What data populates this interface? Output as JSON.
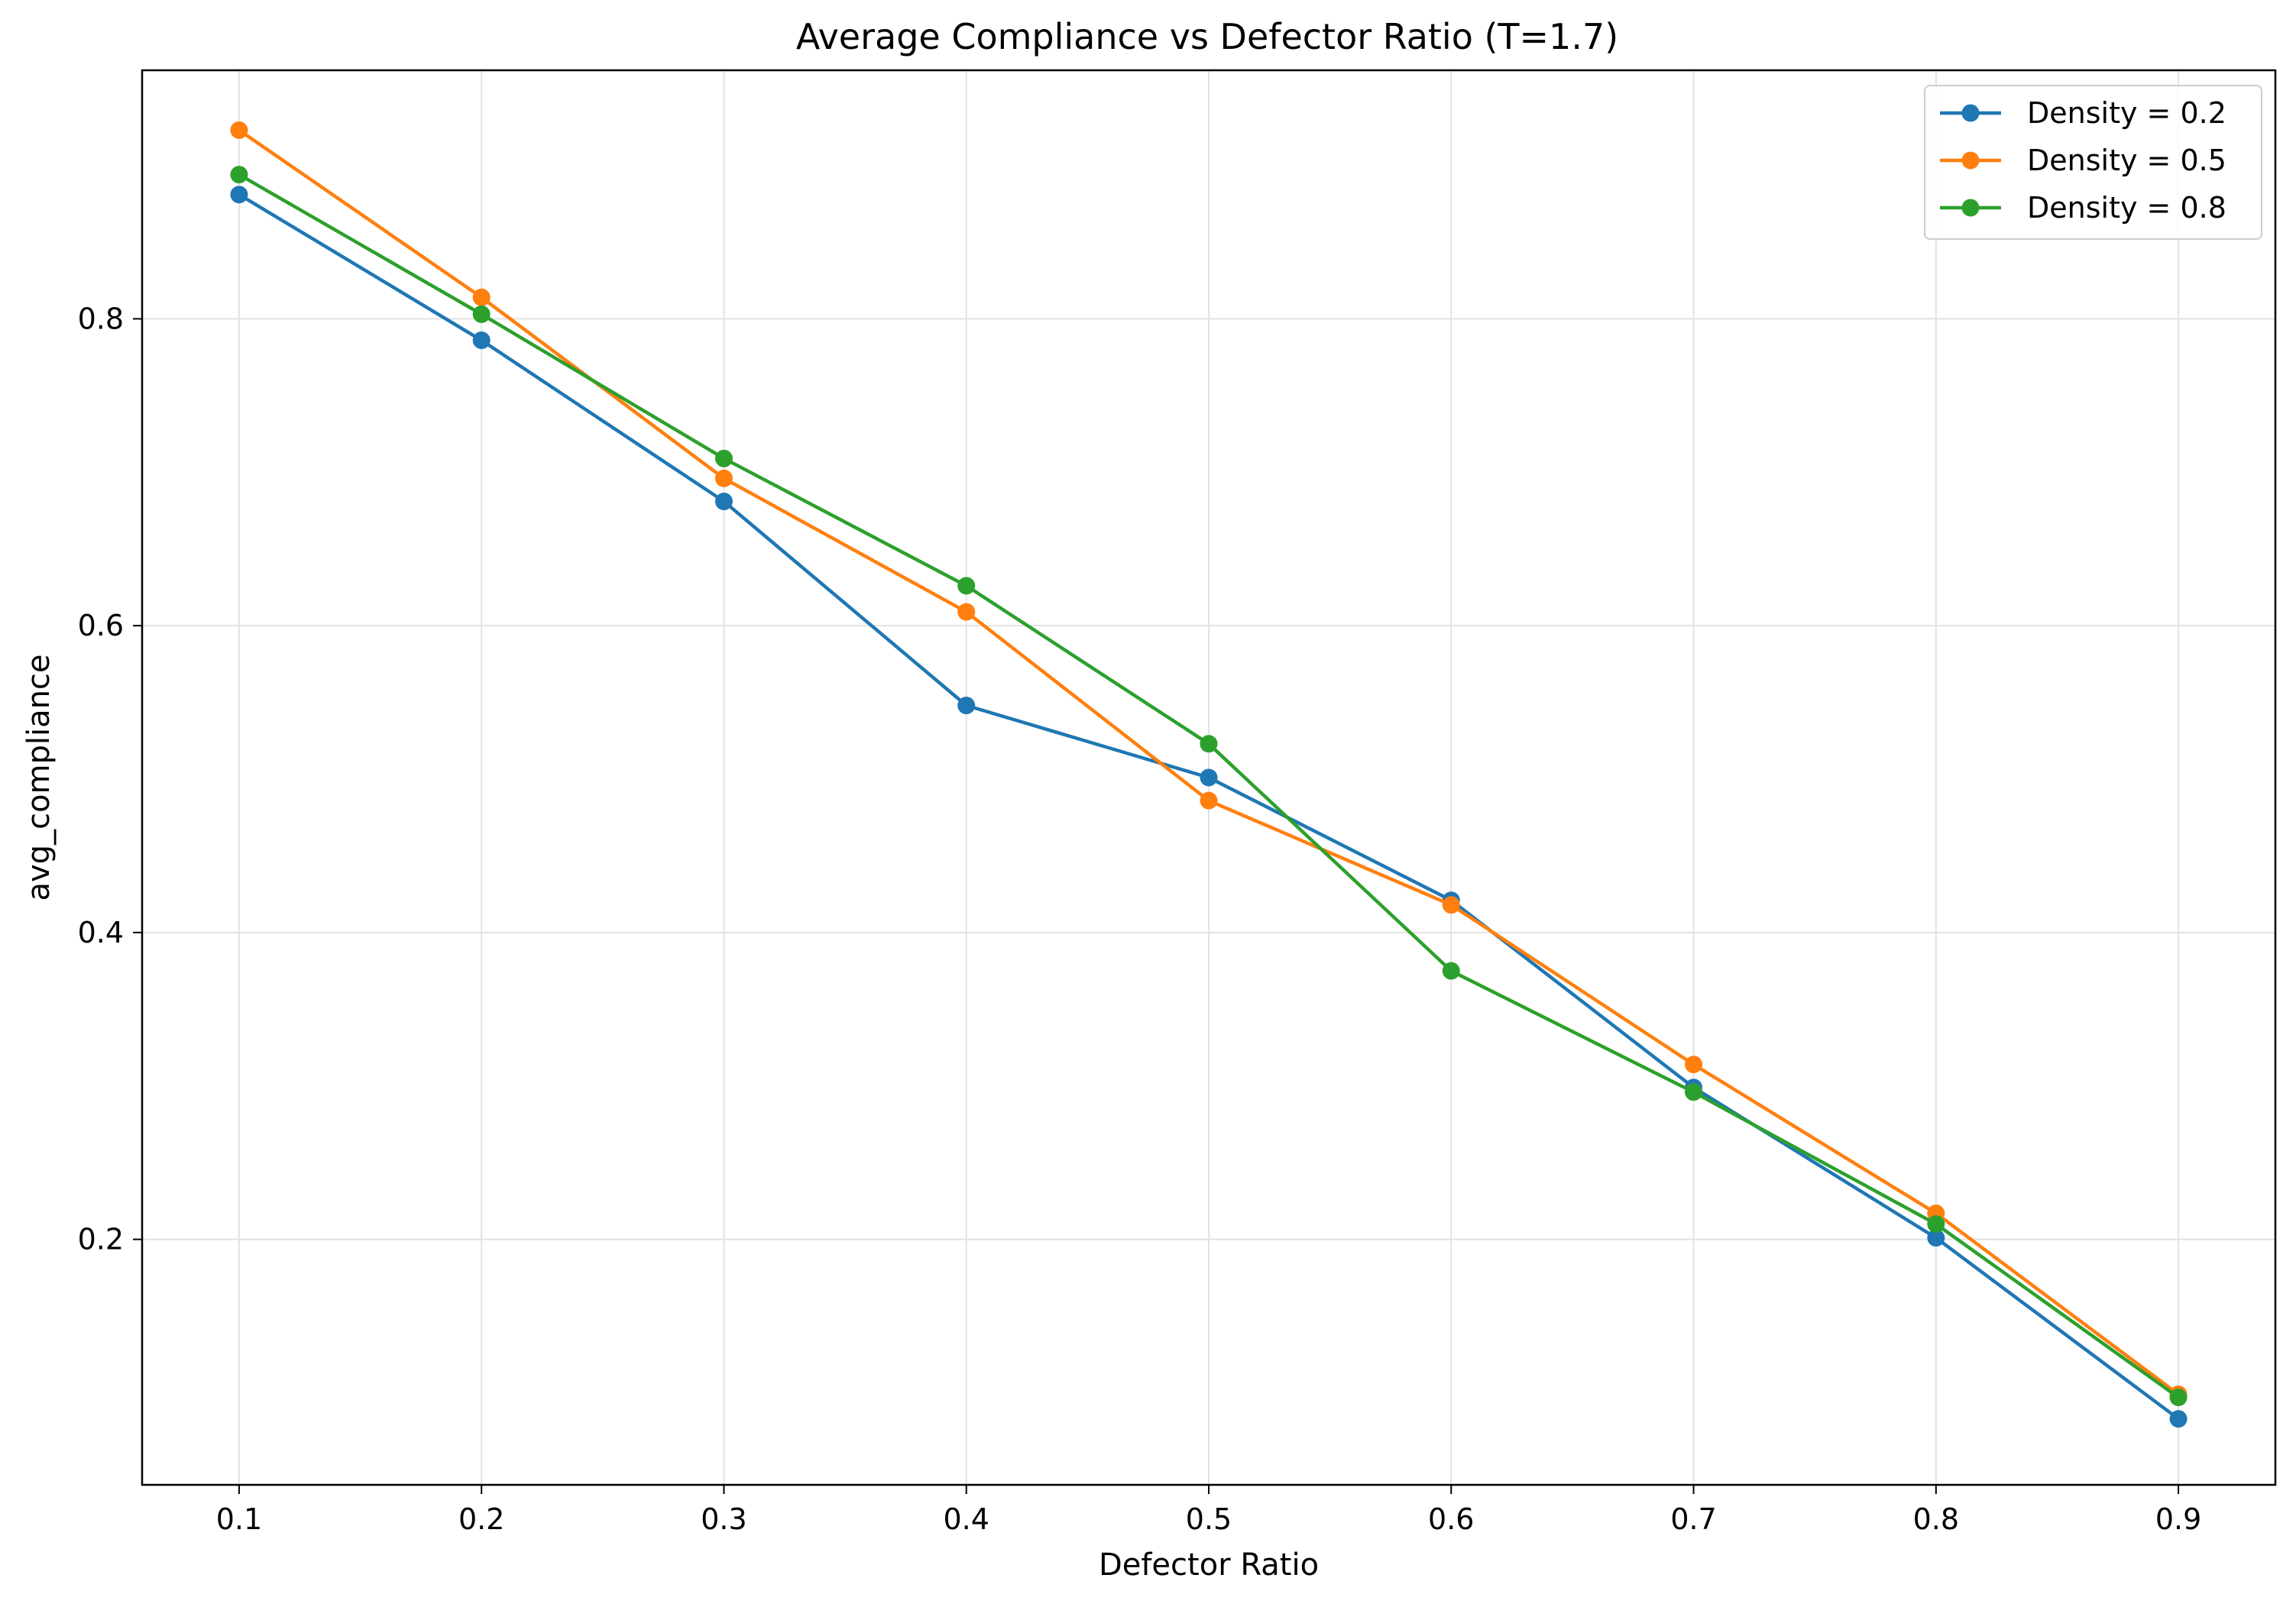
{
  "chart_data": {
    "type": "line",
    "title": "Average Compliance vs Defector Ratio (T=1.7)",
    "xlabel": "Defector Ratio",
    "ylabel": "avg_compliance",
    "x": [
      0.1,
      0.2,
      0.3,
      0.4,
      0.5,
      0.6,
      0.7,
      0.8,
      0.9
    ],
    "x_ticks": [
      "0.1",
      "0.2",
      "0.3",
      "0.4",
      "0.5",
      "0.6",
      "0.7",
      "0.8",
      "0.9"
    ],
    "y_ticks": [
      "0.2",
      "0.4",
      "0.6",
      "0.8"
    ],
    "xlim": [
      0.06,
      0.94
    ],
    "ylim": [
      0.04,
      0.962
    ],
    "grid": true,
    "legend_position": "top-right",
    "series": [
      {
        "name": "Density = 0.2",
        "color": "#1f77b4",
        "values": [
          0.881,
          0.786,
          0.681,
          0.548,
          0.501,
          0.421,
          0.299,
          0.201,
          0.083
        ]
      },
      {
        "name": "Density = 0.5",
        "color": "#ff7f0e",
        "values": [
          0.923,
          0.814,
          0.696,
          0.609,
          0.486,
          0.418,
          0.314,
          0.217,
          0.099
        ]
      },
      {
        "name": "Density = 0.8",
        "color": "#2ca02c",
        "values": [
          0.894,
          0.803,
          0.709,
          0.626,
          0.523,
          0.375,
          0.296,
          0.21,
          0.097
        ]
      }
    ]
  }
}
